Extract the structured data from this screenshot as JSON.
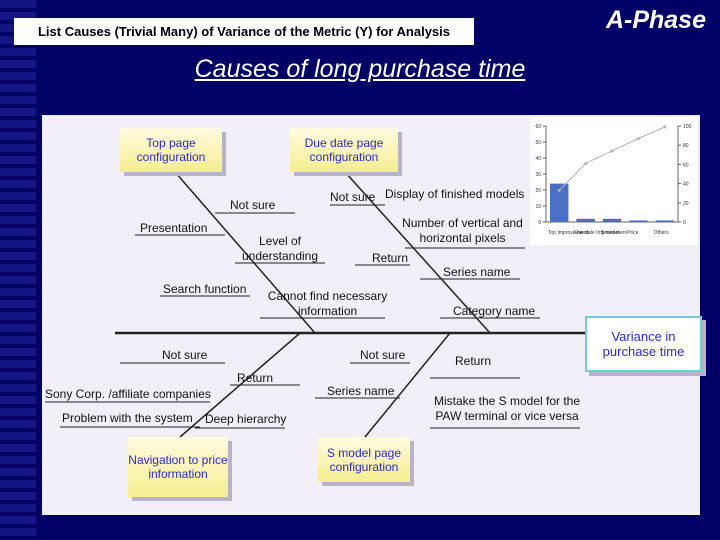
{
  "header": {
    "heading": "List Causes (Trivial Many) of Variance of the Metric (Y) for Analysis",
    "phase": "A-Phase"
  },
  "title": "Causes of long purchase time",
  "diagram": {
    "boxes": [
      "Top page configuration",
      "Due date page configuration",
      "Navigation to price information",
      "S model page configuration"
    ],
    "effect": "Variance in purchase time",
    "labels": [
      "Not sure",
      "Not sure",
      "Display of finished models",
      "Presentation",
      "Number of vertical and horizontal pixels",
      "Level of understanding",
      "Return",
      "Series name",
      "Search function",
      "Cannot find necessary information",
      "Category name",
      "Not sure",
      "Not sure",
      "Return",
      "Return",
      "Sony Corp. /affiliate companies",
      "Series name",
      "Mistake the S model for the PAW terminal or vice versa",
      "Problem with the system",
      "Deep hierarchy"
    ]
  },
  "chart_data": {
    "type": "bar",
    "categories": [
      "Top Improve-ment",
      "Due date Improve-ment",
      "S model",
      "Price",
      "Others"
    ],
    "series": [
      {
        "color": "#4a6fc4",
        "values": [
          24,
          2,
          2,
          1,
          1
        ]
      },
      {
        "color": "#b0b0c8",
        "values": [
          33,
          61,
          74,
          87,
          99
        ],
        "axis": "y2"
      }
    ],
    "ylim": [
      0,
      60
    ],
    "yticks": [
      0,
      10,
      20,
      30,
      40,
      50,
      60
    ],
    "y2lim": [
      0,
      100
    ],
    "y2ticks": [
      0,
      20,
      40,
      60,
      80,
      100
    ]
  }
}
